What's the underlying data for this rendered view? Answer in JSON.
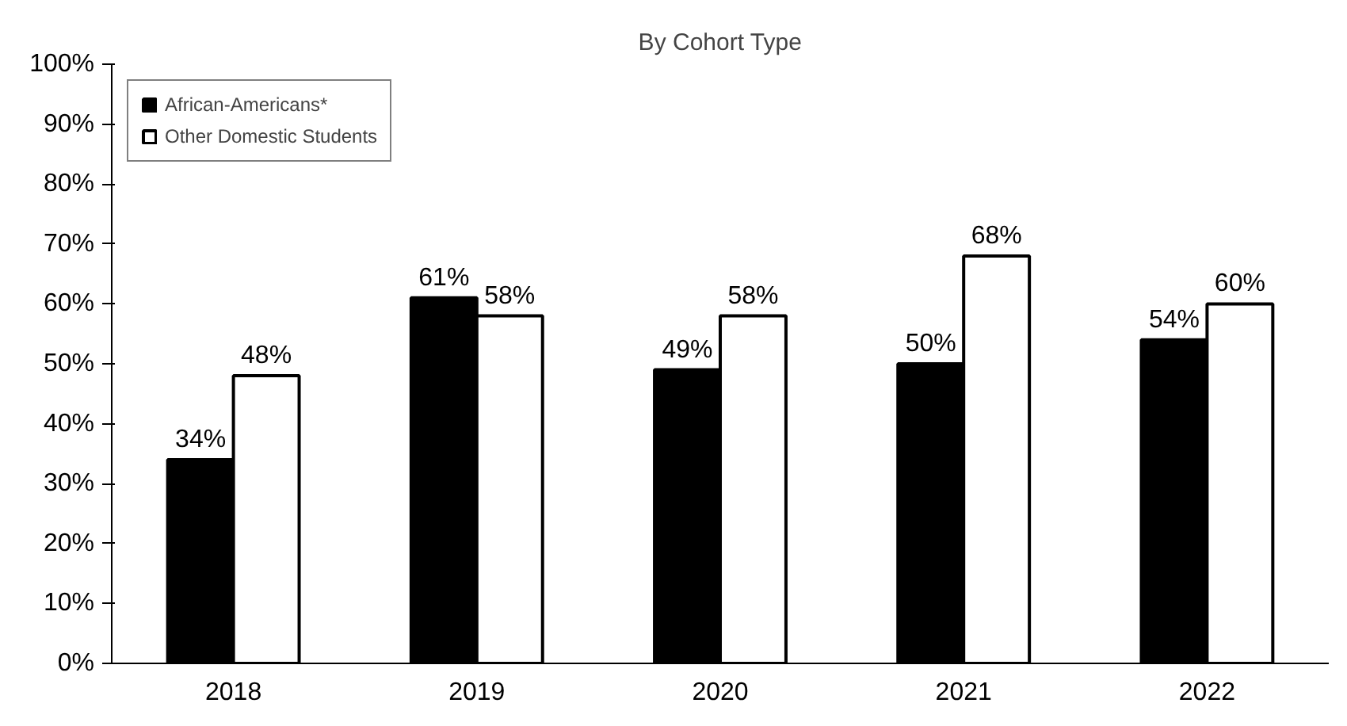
{
  "chart_data": {
    "type": "bar",
    "title": "By Cohort Type",
    "categories": [
      "2018",
      "2019",
      "2020",
      "2021",
      "2022"
    ],
    "series": [
      {
        "name": "African-Americans*",
        "color": "#000000",
        "values": [
          34,
          61,
          49,
          50,
          54
        ],
        "value_labels": [
          "34%",
          "61%",
          "49%",
          "50%",
          "54%"
        ]
      },
      {
        "name": "Other Domestic Students",
        "color": "#ffffff",
        "values": [
          48,
          58,
          58,
          68,
          60
        ],
        "value_labels": [
          "48%",
          "58%",
          "58%",
          "68%",
          "60%"
        ]
      }
    ],
    "ylim": [
      0,
      100
    ],
    "yticks": [
      {
        "value": 0,
        "label": "0%"
      },
      {
        "value": 10,
        "label": "10%"
      },
      {
        "value": 20,
        "label": "20%"
      },
      {
        "value": 30,
        "label": "30%"
      },
      {
        "value": 40,
        "label": "40%"
      },
      {
        "value": 50,
        "label": "50%"
      },
      {
        "value": 60,
        "label": "60%"
      },
      {
        "value": 70,
        "label": "70%"
      },
      {
        "value": 80,
        "label": "80%"
      },
      {
        "value": 90,
        "label": "90%"
      },
      {
        "value": 100,
        "label": "100%"
      }
    ],
    "grid": false,
    "legend": "top left"
  }
}
